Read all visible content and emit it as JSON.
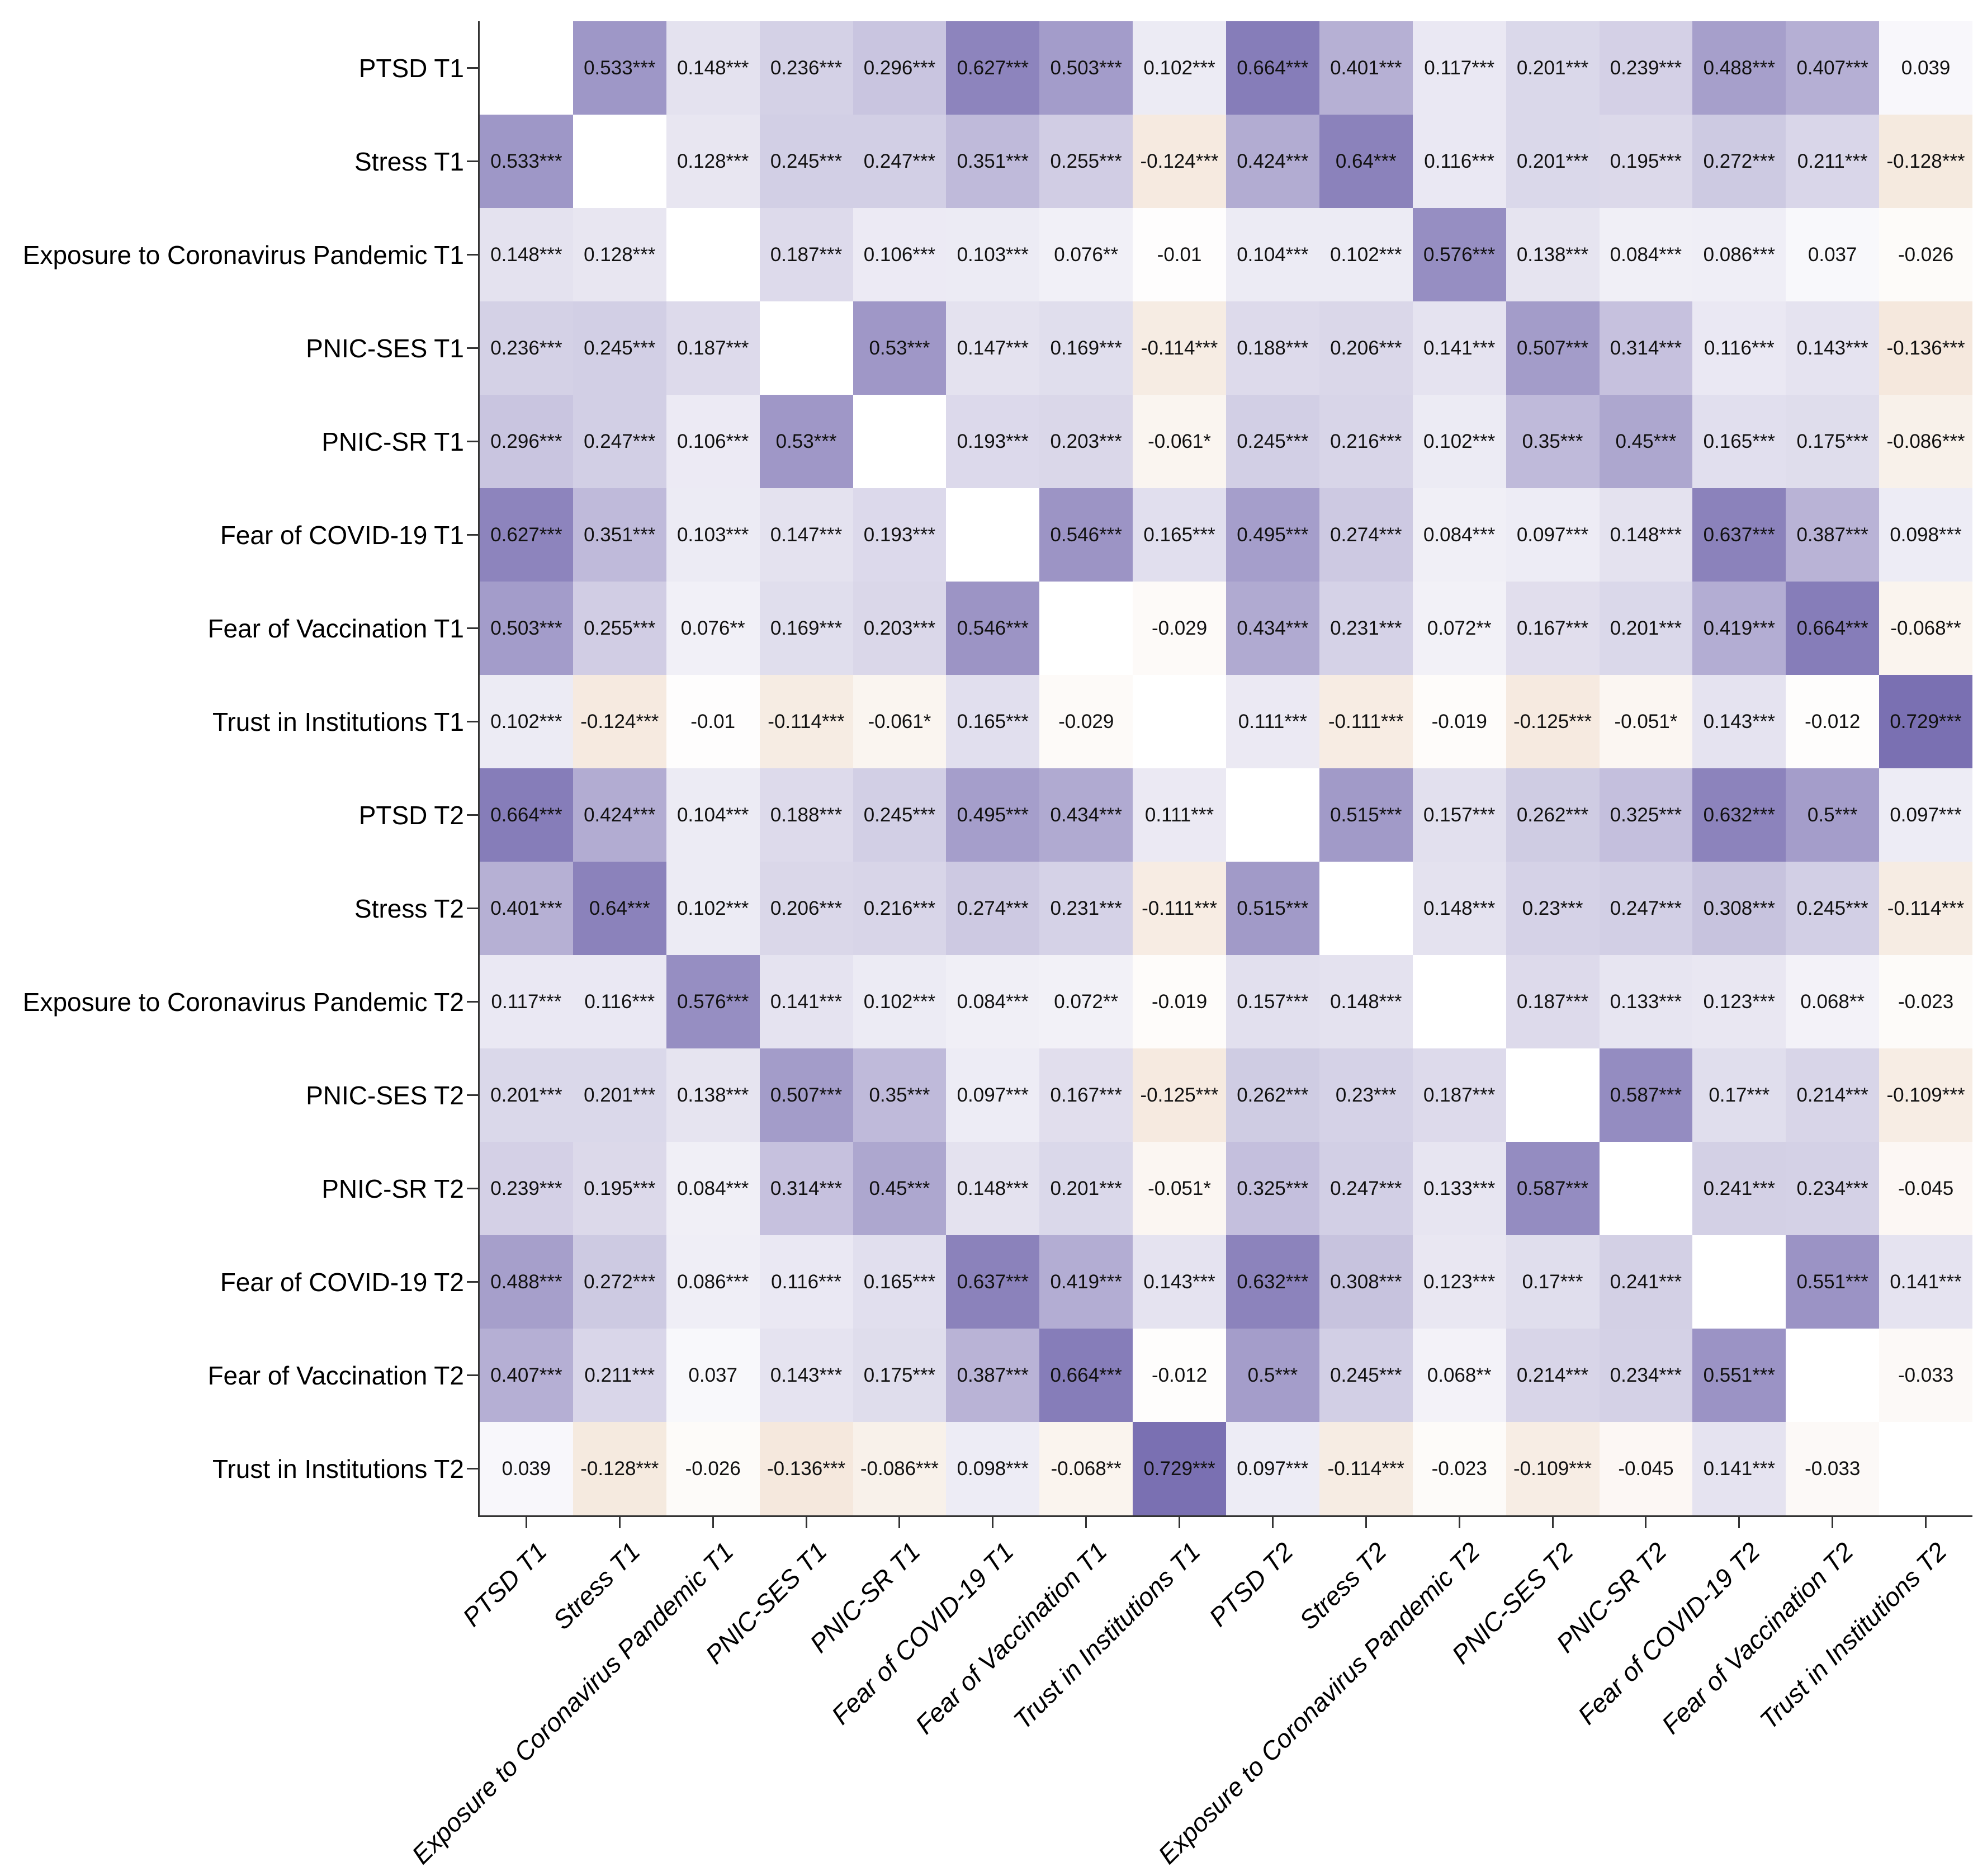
{
  "chart_data": {
    "type": "heatmap",
    "subtype": "correlation-matrix",
    "title": "",
    "xlabel": "",
    "ylabel": "",
    "legend": "none",
    "diagonal": "blank",
    "grid": "off",
    "value_range": [
      -1,
      1
    ],
    "colors": {
      "positive_max": "#493b95",
      "zero": "#ffffff",
      "negative_max": "#b35806",
      "cell_text": "#111111",
      "axis": "#333333"
    },
    "variables": [
      "PTSD T1",
      "Stress T1",
      "Exposure to Coronavirus Pandemic T1",
      "PNIC-SES T1",
      "PNIC-SR T1",
      "Fear of COVID-19 T1",
      "Fear of Vaccination T1",
      "Trust in Institutions T1",
      "PTSD T2",
      "Stress T2",
      "Exposure to Coronavirus Pandemic T2",
      "PNIC-SES T2",
      "PNIC-SR T2",
      "Fear of COVID-19 T2",
      "Fear of Vaccination T2",
      "Trust in Institutions T2"
    ],
    "matrix": [
      [
        "",
        "0.533***",
        "0.148***",
        "0.236***",
        "0.296***",
        "0.627***",
        "0.503***",
        "0.102***",
        "0.664***",
        "0.401***",
        "0.117***",
        "0.201***",
        "0.239***",
        "0.488***",
        "0.407***",
        "0.039"
      ],
      [
        "0.533***",
        "",
        "0.128***",
        "0.245***",
        "0.247***",
        "0.351***",
        "0.255***",
        "-0.124***",
        "0.424***",
        "0.64***",
        "0.116***",
        "0.201***",
        "0.195***",
        "0.272***",
        "0.211***",
        "-0.128***"
      ],
      [
        "0.148***",
        "0.128***",
        "",
        "0.187***",
        "0.106***",
        "0.103***",
        "0.076**",
        "-0.01",
        "0.104***",
        "0.102***",
        "0.576***",
        "0.138***",
        "0.084***",
        "0.086***",
        "0.037",
        "-0.026"
      ],
      [
        "0.236***",
        "0.245***",
        "0.187***",
        "",
        "0.53***",
        "0.147***",
        "0.169***",
        "-0.114***",
        "0.188***",
        "0.206***",
        "0.141***",
        "0.507***",
        "0.314***",
        "0.116***",
        "0.143***",
        "-0.136***"
      ],
      [
        "0.296***",
        "0.247***",
        "0.106***",
        "0.53***",
        "",
        "0.193***",
        "0.203***",
        "-0.061*",
        "0.245***",
        "0.216***",
        "0.102***",
        "0.35***",
        "0.45***",
        "0.165***",
        "0.175***",
        "-0.086***"
      ],
      [
        "0.627***",
        "0.351***",
        "0.103***",
        "0.147***",
        "0.193***",
        "",
        "0.546***",
        "0.165***",
        "0.495***",
        "0.274***",
        "0.084***",
        "0.097***",
        "0.148***",
        "0.637***",
        "0.387***",
        "0.098***"
      ],
      [
        "0.503***",
        "0.255***",
        "0.076**",
        "0.169***",
        "0.203***",
        "0.546***",
        "",
        "-0.029",
        "0.434***",
        "0.231***",
        "0.072**",
        "0.167***",
        "0.201***",
        "0.419***",
        "0.664***",
        "-0.068**"
      ],
      [
        "0.102***",
        "-0.124***",
        "-0.01",
        "-0.114***",
        "-0.061*",
        "0.165***",
        "-0.029",
        "",
        "0.111***",
        "-0.111***",
        "-0.019",
        "-0.125***",
        "-0.051*",
        "0.143***",
        "-0.012",
        "0.729***"
      ],
      [
        "0.664***",
        "0.424***",
        "0.104***",
        "0.188***",
        "0.245***",
        "0.495***",
        "0.434***",
        "0.111***",
        "",
        "0.515***",
        "0.157***",
        "0.262***",
        "0.325***",
        "0.632***",
        "0.5***",
        "0.097***"
      ],
      [
        "0.401***",
        "0.64***",
        "0.102***",
        "0.206***",
        "0.216***",
        "0.274***",
        "0.231***",
        "-0.111***",
        "0.515***",
        "",
        "0.148***",
        "0.23***",
        "0.247***",
        "0.308***",
        "0.245***",
        "-0.114***"
      ],
      [
        "0.117***",
        "0.116***",
        "0.576***",
        "0.141***",
        "0.102***",
        "0.084***",
        "0.072**",
        "-0.019",
        "0.157***",
        "0.148***",
        "",
        "0.187***",
        "0.133***",
        "0.123***",
        "0.068**",
        "-0.023"
      ],
      [
        "0.201***",
        "0.201***",
        "0.138***",
        "0.507***",
        "0.35***",
        "0.097***",
        "0.167***",
        "-0.125***",
        "0.262***",
        "0.23***",
        "0.187***",
        "",
        "0.587***",
        "0.17***",
        "0.214***",
        "-0.109***"
      ],
      [
        "0.239***",
        "0.195***",
        "0.084***",
        "0.314***",
        "0.45***",
        "0.148***",
        "0.201***",
        "-0.051*",
        "0.325***",
        "0.247***",
        "0.133***",
        "0.587***",
        "",
        "0.241***",
        "0.234***",
        "-0.045"
      ],
      [
        "0.488***",
        "0.272***",
        "0.086***",
        "0.116***",
        "0.165***",
        "0.637***",
        "0.419***",
        "0.143***",
        "0.632***",
        "0.308***",
        "0.123***",
        "0.17***",
        "0.241***",
        "",
        "0.551***",
        "0.141***"
      ],
      [
        "0.407***",
        "0.211***",
        "0.037",
        "0.143***",
        "0.175***",
        "0.387***",
        "0.664***",
        "-0.012",
        "0.5***",
        "0.245***",
        "0.068**",
        "0.214***",
        "0.234***",
        "0.551***",
        "",
        "-0.033"
      ],
      [
        "0.039",
        "-0.128***",
        "-0.026",
        "-0.136***",
        "-0.086***",
        "0.098***",
        "-0.068**",
        "0.729***",
        "0.097***",
        "-0.114***",
        "-0.023",
        "-0.109***",
        "-0.045",
        "0.141***",
        "-0.033",
        ""
      ]
    ]
  }
}
